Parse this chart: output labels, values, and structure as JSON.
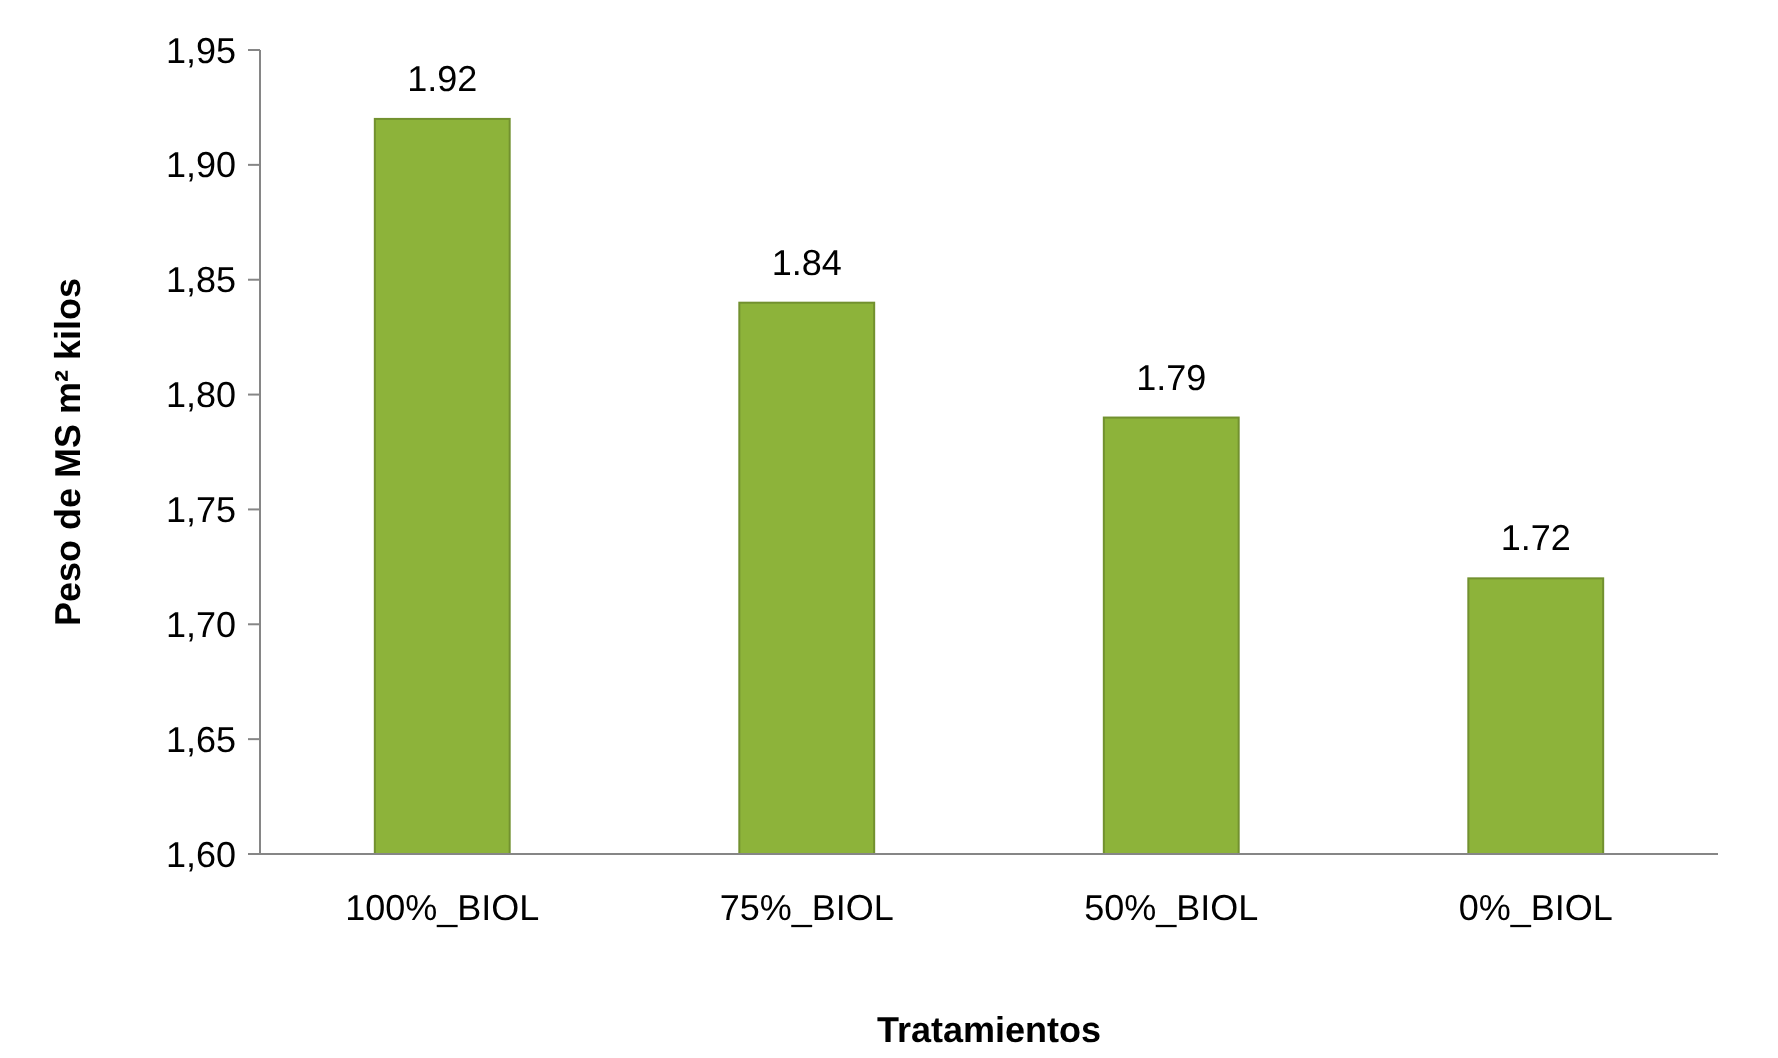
{
  "chart_data": {
    "type": "bar",
    "xlabel": "Tratamientos",
    "ylabel": "Peso de MS m² kilos",
    "categories": [
      "100%_BIOL",
      "75%_BIOL",
      "50%_BIOL",
      "0%_BIOL"
    ],
    "values": [
      1.92,
      1.84,
      1.79,
      1.72
    ],
    "color": "#8db33a",
    "ylim": [
      1.6,
      1.95
    ],
    "yticks": [
      {
        "value": 1.6,
        "label": "1,60"
      },
      {
        "value": 1.65,
        "label": "1,65"
      },
      {
        "value": 1.7,
        "label": "1,70"
      },
      {
        "value": 1.75,
        "label": "1,75"
      },
      {
        "value": 1.8,
        "label": "1,80"
      },
      {
        "value": 1.85,
        "label": "1,85"
      },
      {
        "value": 1.9,
        "label": "1,90"
      },
      {
        "value": 1.95,
        "label": "1,95"
      }
    ],
    "data_labels": true,
    "grid": false
  }
}
